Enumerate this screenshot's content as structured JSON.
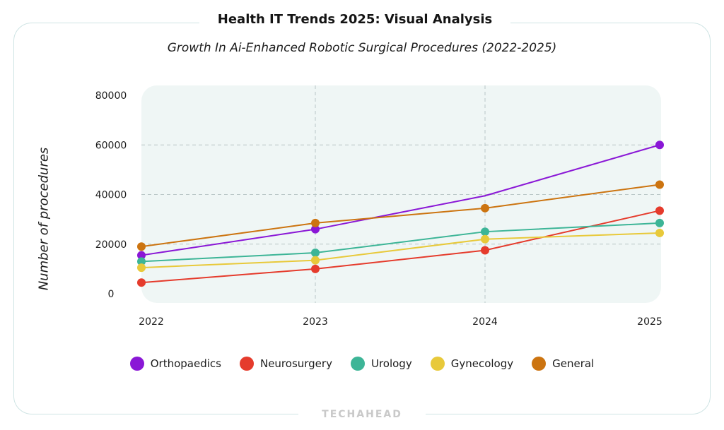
{
  "header": {
    "title": "Health IT Trends 2025: Visual Analysis",
    "brand": "TECHAHEAD"
  },
  "chart_data": {
    "type": "line",
    "title": "Growth In Ai-Enhanced Robotic Surgical Procedures (2022-2025)",
    "xlabel": "",
    "ylabel": "Number of procedures",
    "x": [
      "2022",
      "2023",
      "2024",
      "2025"
    ],
    "ylim": [
      0,
      80000
    ],
    "yticks": [
      0,
      20000,
      40000,
      60000,
      80000
    ],
    "ytick_labels": [
      "0",
      "20000",
      "40000",
      "60000",
      "80000"
    ],
    "grid": true,
    "legend_position": "bottom",
    "series": [
      {
        "name": "Orthopaedics",
        "color": "#8a17d6",
        "values": [
          15500,
          26000,
          39500,
          60000
        ]
      },
      {
        "name": "Neurosurgery",
        "color": "#e53b2c",
        "values": [
          4500,
          10000,
          17500,
          33500
        ]
      },
      {
        "name": "Urology",
        "color": "#3db597",
        "values": [
          13000,
          16500,
          25000,
          28500
        ]
      },
      {
        "name": "Gynecology",
        "color": "#e8c93a",
        "values": [
          10500,
          13500,
          22000,
          24500
        ]
      },
      {
        "name": "General",
        "color": "#cc7410",
        "values": [
          19000,
          28500,
          34500,
          44000
        ]
      }
    ]
  }
}
